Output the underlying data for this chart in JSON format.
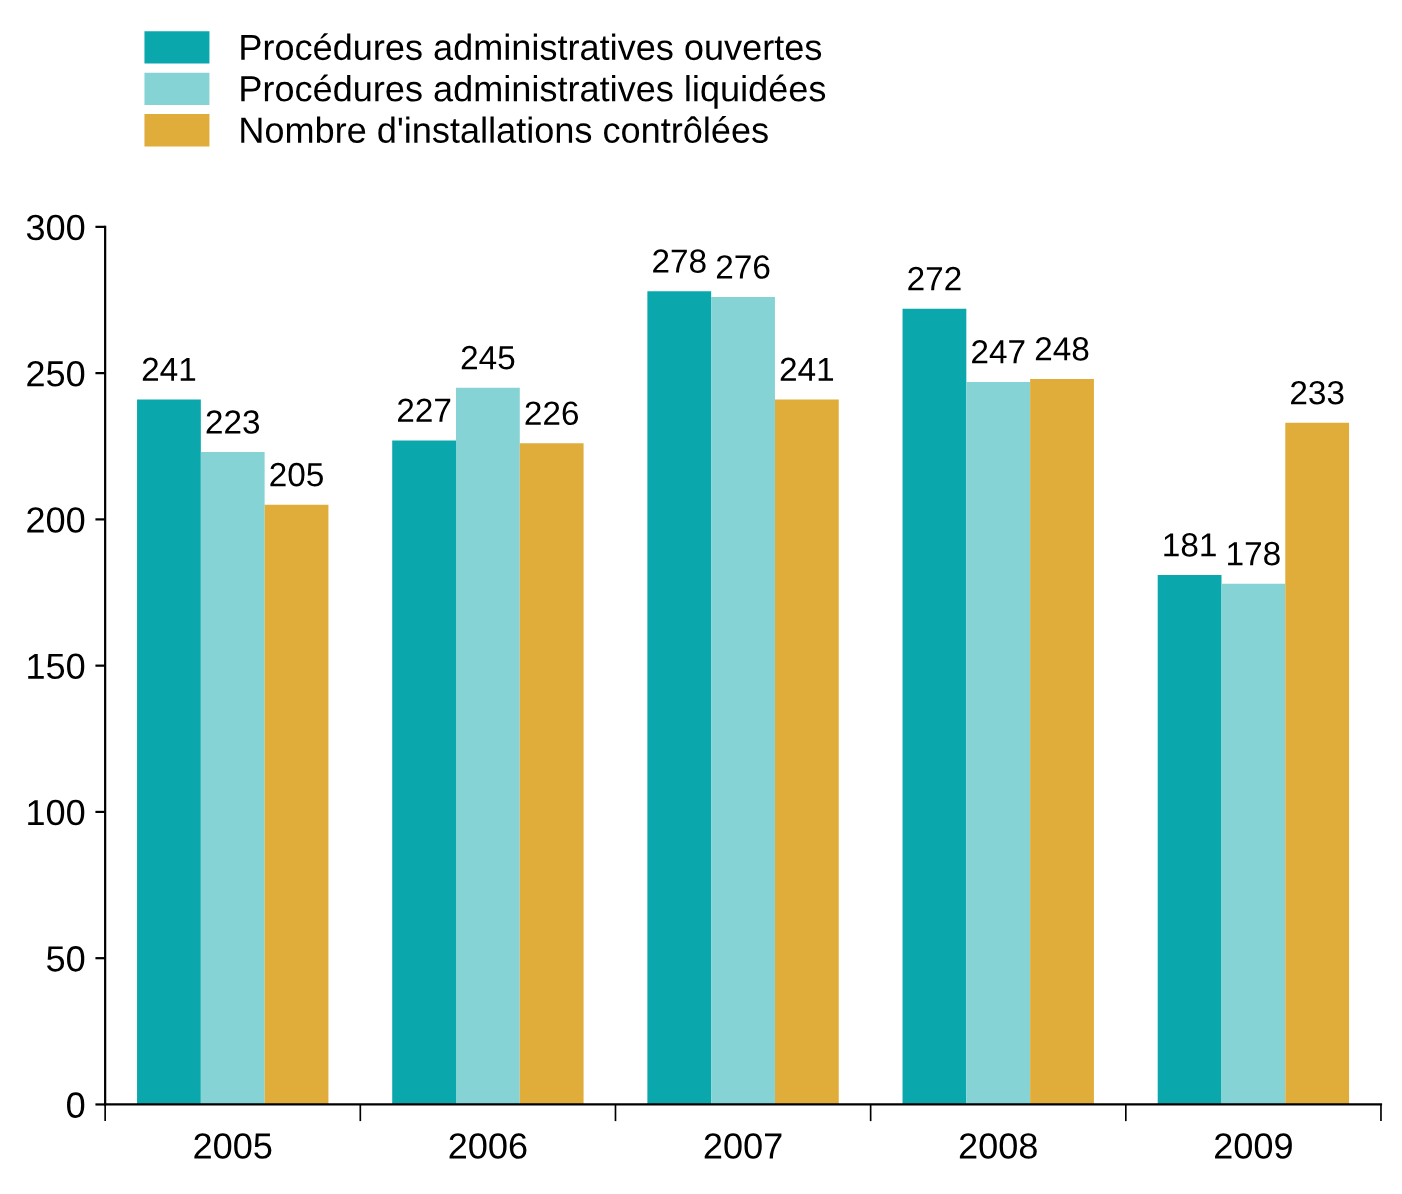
{
  "chart_data": {
    "type": "bar",
    "categories": [
      "2005",
      "2006",
      "2007",
      "2008",
      "2009"
    ],
    "series": [
      {
        "name": "Procédures administratives ouvertes",
        "color": "#0aa8ad",
        "values": [
          241,
          227,
          278,
          272,
          181
        ]
      },
      {
        "name": "Procédures administratives liquidées",
        "color": "#86d3d6",
        "values": [
          223,
          245,
          276,
          247,
          178
        ]
      },
      {
        "name": "Nombre d'installations contrôlées",
        "color": "#e0ac3a",
        "values": [
          205,
          226,
          241,
          248,
          233
        ]
      }
    ],
    "ylim": [
      0,
      300
    ],
    "yticks": [
      0,
      50,
      100,
      150,
      200,
      250,
      300
    ],
    "grid": false,
    "legend": "top left",
    "data_labels": true
  }
}
